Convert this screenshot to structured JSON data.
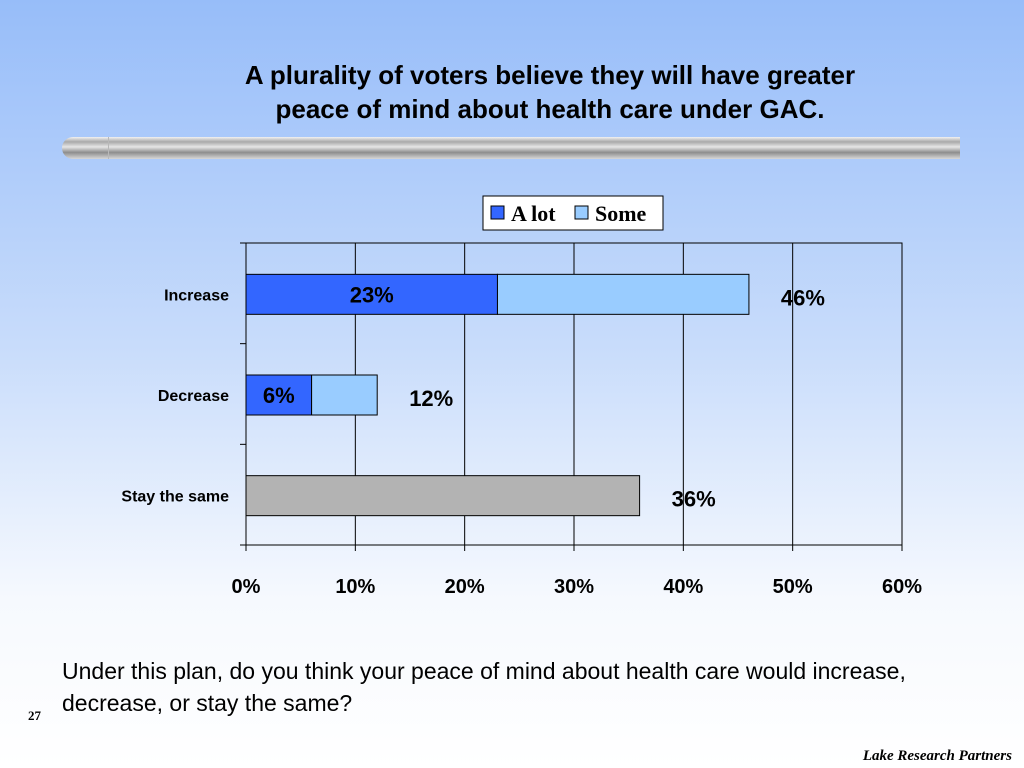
{
  "slide": {
    "title_line1": "A plurality of voters believe they will have greater",
    "title_line2": "peace of mind about health care under GAC.",
    "question": "Under this plan, do you think your peace of mind about health care would increase, decrease, or stay the same?",
    "page_number": "27",
    "company": "Lake Research Partners"
  },
  "colors": {
    "a_lot": "#3366ff",
    "some": "#99ccff",
    "stay": "#b3b3b3"
  },
  "chart_data": {
    "type": "bar",
    "orientation": "horizontal",
    "stacked": true,
    "categories": [
      "Increase",
      "Decrease",
      "Stay the same"
    ],
    "series": [
      {
        "name": "A lot",
        "values": [
          23,
          6,
          36
        ]
      },
      {
        "name": "Some",
        "values": [
          23,
          6,
          0
        ]
      }
    ],
    "bar_labels": [
      {
        "category": "Increase",
        "inner": "23%",
        "total": "46%"
      },
      {
        "category": "Decrease",
        "inner": "6%",
        "total": "12%"
      },
      {
        "category": "Stay the same",
        "inner": "",
        "total": "36%"
      }
    ],
    "xlim": [
      0,
      60
    ],
    "x_ticks": [
      0,
      10,
      20,
      30,
      40,
      50,
      60
    ],
    "x_tick_labels": [
      "0%",
      "10%",
      "20%",
      "30%",
      "40%",
      "50%",
      "60%"
    ],
    "grid": "vertical",
    "legend": {
      "placement": "top-center",
      "entries": [
        "A lot",
        "Some"
      ]
    }
  }
}
